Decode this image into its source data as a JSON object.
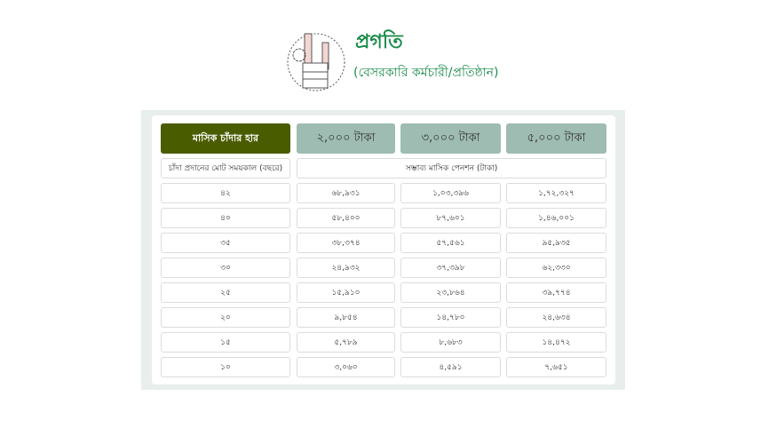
{
  "header": {
    "title": "প্রগতি",
    "subtitle": "(বেসরকারি কর্মচারী/প্রতিষ্ঠান)"
  },
  "colors": {
    "title": "#1a8a4a",
    "rate_header": "#4a5c00",
    "amount_header": "#9ebcb2"
  },
  "table": {
    "rate_label": "মাসিক চাঁদার হার",
    "amounts": [
      "২,০০০ টাকা",
      "৩,০০০ টাকা",
      "৫,০০০ টাকা"
    ],
    "period_label": "চাঁদা প্রদানের মোট সময়কাল (বছরে)",
    "pension_label": "সম্ভাব্য মাসিক পেনশন (টাকা)",
    "rows": [
      [
        "৪২",
        "৬৮,৯৩১",
        "১,০৩,৩৯৬",
        "১,৭২,৩২৭"
      ],
      [
        "৪০",
        "৫৮,৪০০",
        "৮৭,৬০১",
        "১,৪৬,০০১"
      ],
      [
        "৩৫",
        "৩৮,৩৭৪",
        "৫৭,৫৬১",
        "৯৫,৯৩৫"
      ],
      [
        "৩০",
        "২৪,৯৩২",
        "৩৭,৩৯৮",
        "৬২,৩৩০"
      ],
      [
        "২৫",
        "১৫,৯১০",
        "২৩,৮৬৪",
        "৩৯,৭৭৪"
      ],
      [
        "২০",
        "৯,৮৫৪",
        "১৪,৭৮০",
        "২৪,৬৩৪"
      ],
      [
        "১৫",
        "৫,৭৮৯",
        "৮,৬৮৩",
        "১৪,৪৭২"
      ],
      [
        "১০",
        "৩,০৬০",
        "৪,৫৯১",
        "৭,৬৫১"
      ]
    ]
  }
}
